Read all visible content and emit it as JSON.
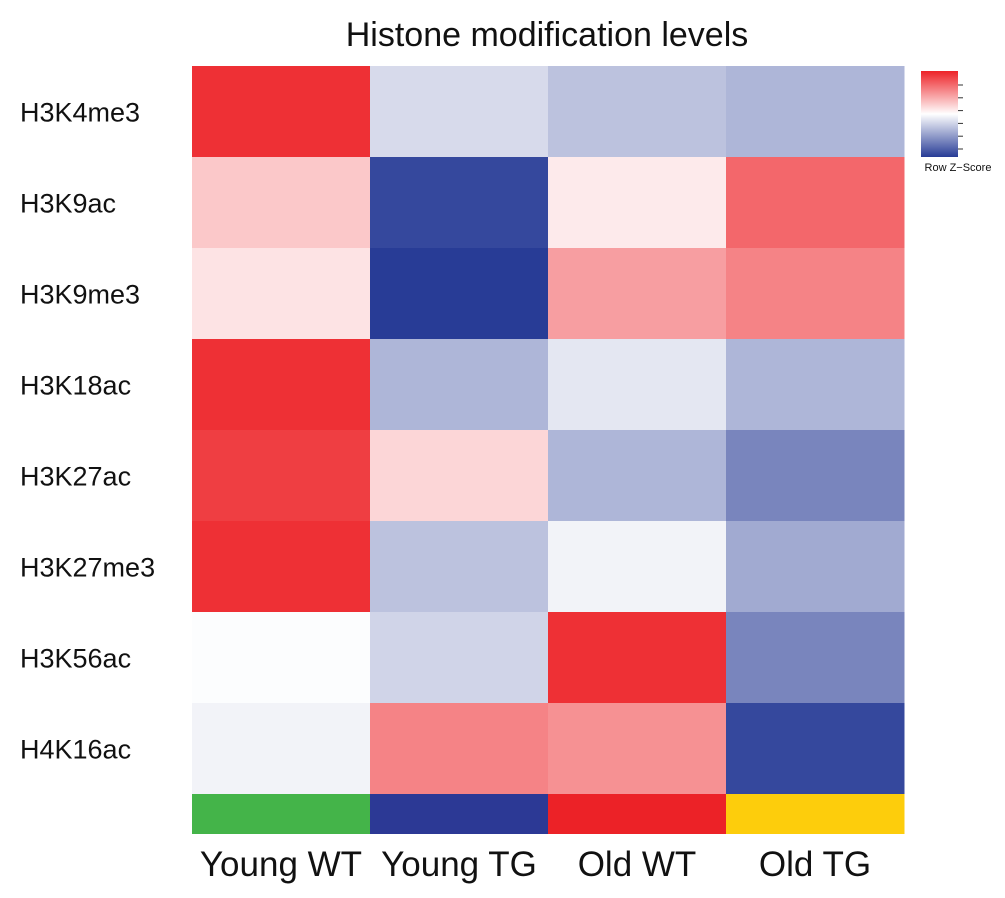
{
  "chart_data": {
    "type": "heatmap",
    "title": "Histone modification levels",
    "rows": [
      "H3K4me3",
      "H3K9ac",
      "H3K9me3",
      "H3K18ac",
      "H3K27ac",
      "H3K27me3",
      "H3K56ac",
      "H4K16ac"
    ],
    "columns": [
      "Young WT",
      "Young TG",
      "Old WT",
      "Old TG"
    ],
    "values": [
      [
        1.5,
        -0.3,
        -0.5,
        -0.6
      ],
      [
        0.4,
        -1.5,
        0.15,
        1.1
      ],
      [
        0.2,
        -1.6,
        0.7,
        0.9
      ],
      [
        1.5,
        -0.6,
        -0.2,
        -0.6
      ],
      [
        1.4,
        0.3,
        -0.6,
        -1.0
      ],
      [
        1.5,
        -0.5,
        -0.1,
        -0.7
      ],
      [
        -0.02,
        -0.35,
        1.5,
        -1.0
      ],
      [
        -0.1,
        0.9,
        0.8,
        -1.5
      ]
    ],
    "column_annotation_colors": [
      "#44b449",
      "#2c3995",
      "#ec2227",
      "#fdcd0c"
    ],
    "color_scale": {
      "low": "#283c96",
      "mid": "#ffffff",
      "high": "#ed2227",
      "range": [
        -1.6,
        1.6
      ]
    },
    "legend": {
      "label": "Row Z−Score",
      "placement": "top-right"
    }
  }
}
